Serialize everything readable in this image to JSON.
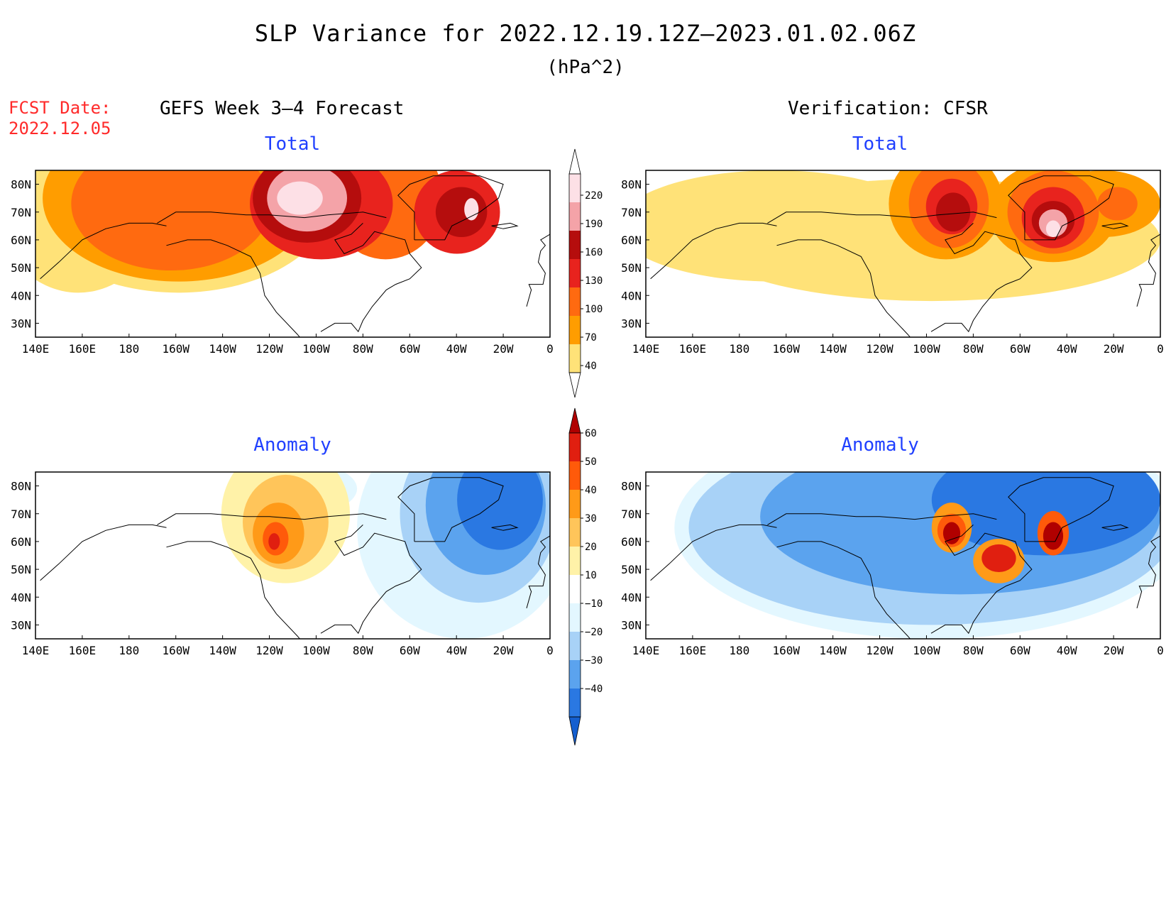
{
  "header": {
    "title": "SLP Variance for 2022.12.19.12Z–2023.01.02.06Z",
    "units": "(hPa^2)",
    "fcst_date_label": "FCST Date:",
    "fcst_date_value": "2022.12.05"
  },
  "columns": {
    "left": "GEFS Week 3–4 Forecast",
    "right": "Verification: CFSR"
  },
  "panels": [
    {
      "id": "gefs-total",
      "title": "Total",
      "field": "total",
      "pattern": "gefs"
    },
    {
      "id": "cfsr-total",
      "title": "Total",
      "field": "total",
      "pattern": "cfsr"
    },
    {
      "id": "gefs-anomaly",
      "title": "Anomaly",
      "field": "anomaly",
      "pattern": "gefs"
    },
    {
      "id": "cfsr-anomaly",
      "title": "Anomaly",
      "field": "anomaly",
      "pattern": "cfsr"
    }
  ],
  "axes": {
    "lon_labels": [
      "140E",
      "160E",
      "180",
      "160W",
      "140W",
      "120W",
      "100W",
      "80W",
      "60W",
      "40W",
      "20W",
      "0"
    ],
    "lat_labels": [
      "80N",
      "70N",
      "60N",
      "50N",
      "40N",
      "30N"
    ],
    "lat_values": [
      80,
      70,
      60,
      50,
      40,
      30
    ],
    "lat_range": [
      25,
      85
    ],
    "lon_range": [
      140,
      360
    ]
  },
  "colorbars": {
    "total": {
      "levels": [
        "220",
        "190",
        "160",
        "130",
        "100",
        "70",
        "40"
      ],
      "colors": [
        "#fde0e6",
        "#f4a3a8",
        "#b50d0d",
        "#e8231e",
        "#ff6a10",
        "#ff9d00",
        "#ffe278"
      ],
      "top_color": "#ffffff"
    },
    "anomaly": {
      "levels": [
        "60",
        "50",
        "40",
        "30",
        "20",
        "10",
        "−10",
        "−20",
        "−30",
        "−40"
      ],
      "colors": [
        "#b00000",
        "#e01f10",
        "#ff5a0a",
        "#ff9a18",
        "#ffc55a",
        "#fff2a8",
        "#ffffff",
        "#e3f7ff",
        "#a8d2f7",
        "#5ba3ee",
        "#2a78e2",
        "#155fcf"
      ]
    }
  },
  "palette": {
    "total": [
      "#ffe278",
      "#ff9d00",
      "#ff6a10",
      "#e8231e",
      "#b50d0d",
      "#f4a3a8",
      "#fde0e6"
    ],
    "anomaly_pos": [
      "#fff2a8",
      "#ffc55a",
      "#ff9a18",
      "#ff5a0a",
      "#e01f10",
      "#b00000"
    ],
    "anomaly_neg": [
      "#e3f7ff",
      "#a8d2f7",
      "#5ba3ee",
      "#2a78e2"
    ]
  }
}
